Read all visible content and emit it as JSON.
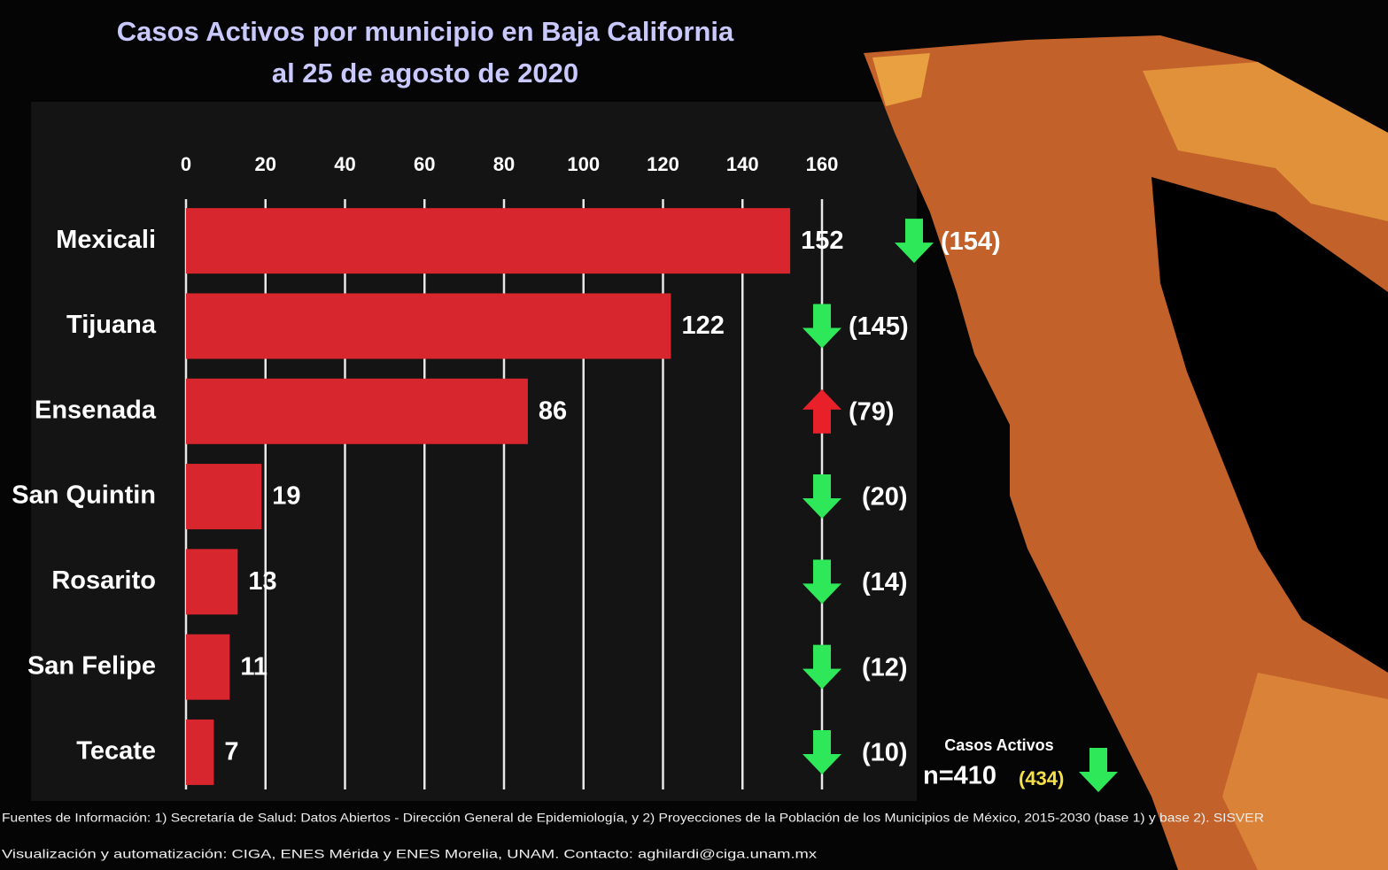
{
  "chart_data": {
    "type": "bar",
    "orientation": "horizontal",
    "title": "Casos Activos por municipio en Baja California",
    "subtitle": "al 25 de agosto de 2020",
    "categories": [
      "Mexicali",
      "Tijuana",
      "Ensenada",
      "San Quintin",
      "Rosarito",
      "San Felipe",
      "Tecate"
    ],
    "values": [
      152,
      122,
      86,
      19,
      13,
      11,
      7
    ],
    "color": "#d8262e",
    "xlim": [
      0,
      160
    ],
    "xticks": [
      0,
      20,
      40,
      60,
      80,
      100,
      120,
      140,
      160
    ],
    "grid": true,
    "previous": {
      "values": [
        154,
        145,
        79,
        20,
        14,
        12,
        10
      ],
      "value_labels": [
        "(154)",
        "(145)",
        "(79)",
        "(20)",
        "(14)",
        "(12)",
        "(10)"
      ],
      "down_color": "#2ee85a",
      "up_color": "#e8202a"
    },
    "total": {
      "label": "Casos Activos",
      "value": 410,
      "value_label": "n=410",
      "previous": 434,
      "previous_label": "(434)",
      "previous_color": "#f5e04a"
    },
    "footnotes": [
      "Fuentes de Información: 1) Secretaría de Salud: Datos Abiertos - Dirección General de Epidemiología, y 2) Proyecciones de la Población de los Municipios de México, 2015-2030 (base 1) y base 2). SISVER",
      "Visualización y automatización: CIGA, ENES Mérida y ENES Morelia, UNAM. Contacto: aghilardi@ciga.unam.mx"
    ]
  }
}
